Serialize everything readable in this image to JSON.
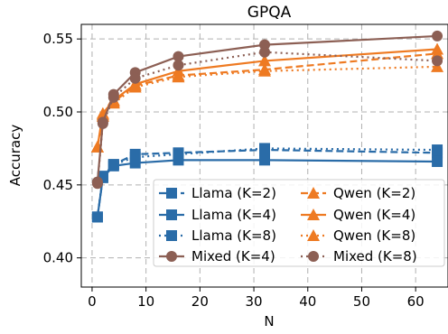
{
  "chart_data": {
    "type": "line",
    "title": "GPQA",
    "xlabel": "N",
    "ylabel": "Accuracy",
    "xlim": [
      -2,
      66
    ],
    "ylim": [
      0.38,
      0.56
    ],
    "xticks": [
      0,
      10,
      20,
      30,
      40,
      50,
      60
    ],
    "xtick_labels": [
      "0",
      "10",
      "20",
      "30",
      "40",
      "50",
      "60"
    ],
    "yticks": [
      0.4,
      0.45,
      0.5,
      0.55
    ],
    "ytick_labels": [
      "0.40",
      "0.45",
      "0.50",
      "0.55"
    ],
    "grid": true,
    "legend_position": "bottom-right",
    "x": [
      1,
      2,
      4,
      8,
      16,
      32,
      64
    ],
    "series": [
      {
        "name": "Llama (K=2)",
        "color": "#2a6ca8",
        "marker": "square",
        "linestyle": "dashed",
        "values": [
          0.428,
          0.455,
          0.464,
          0.471,
          0.472,
          0.474,
          0.472
        ]
      },
      {
        "name": "Llama (K=4)",
        "color": "#2a6ca8",
        "marker": "square",
        "linestyle": "solid",
        "values": [
          0.428,
          0.455,
          0.463,
          0.465,
          0.467,
          0.467,
          0.466
        ]
      },
      {
        "name": "Llama (K=8)",
        "color": "#2a6ca8",
        "marker": "square",
        "linestyle": "dotted",
        "values": [
          0.428,
          0.456,
          0.464,
          0.469,
          0.471,
          0.475,
          0.474
        ]
      },
      {
        "name": "Qwen (K=2)",
        "color": "#ee7a22",
        "marker": "triangle",
        "linestyle": "dashed",
        "values": [
          0.476,
          0.497,
          0.507,
          0.518,
          0.525,
          0.529,
          0.54
        ]
      },
      {
        "name": "Qwen (K=4)",
        "color": "#ee7a22",
        "marker": "triangle",
        "linestyle": "solid",
        "values": [
          0.476,
          0.499,
          0.508,
          0.519,
          0.528,
          0.535,
          0.543
        ]
      },
      {
        "name": "Qwen (K=8)",
        "color": "#ee7a22",
        "marker": "triangle",
        "linestyle": "dotted",
        "values": [
          0.476,
          0.498,
          0.506,
          0.517,
          0.524,
          0.528,
          0.531
        ]
      },
      {
        "name": "Mixed (K=4)",
        "color": "#8c5f54",
        "marker": "circle",
        "linestyle": "solid",
        "values": [
          0.452,
          0.493,
          0.512,
          0.527,
          0.538,
          0.546,
          0.552
        ]
      },
      {
        "name": "Mixed (K=8)",
        "color": "#8c5f54",
        "marker": "circle",
        "linestyle": "dotted",
        "values": [
          0.451,
          0.492,
          0.51,
          0.523,
          0.532,
          0.541,
          0.535
        ]
      }
    ]
  }
}
